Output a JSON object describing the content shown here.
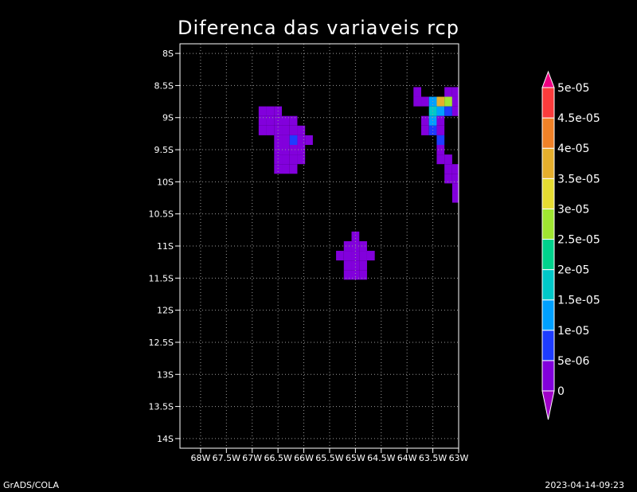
{
  "chart_data": {
    "type": "heatmap",
    "title": "Diferenca das variaveis rcp",
    "x_ticks": [
      "68W",
      "67.5W",
      "67W",
      "66.5W",
      "66W",
      "65.5W",
      "65W",
      "64.5W",
      "64W",
      "63.5W",
      "63W"
    ],
    "y_ticks": [
      "8S",
      "8.5S",
      "9S",
      "9.5S",
      "10S",
      "10.5S",
      "11S",
      "11.5S",
      "12S",
      "12.5S",
      "13S",
      "13.5S",
      "14S"
    ],
    "lon_range": [
      -68.4,
      -63.0
    ],
    "lat_range": [
      -14.15,
      -7.85
    ],
    "grid": true,
    "legend": "right",
    "colorbar": {
      "levels": [
        "0",
        "5e-06",
        "1e-05",
        "1.5e-05",
        "2e-05",
        "2.5e-05",
        "3e-05",
        "3.5e-05",
        "4e-05",
        "4.5e-05",
        "5e-05"
      ],
      "colors": [
        "#a000c8",
        "#8200dc",
        "#1e3cff",
        "#00a0ff",
        "#00c8c8",
        "#00d28c",
        "#a0e632",
        "#e6dc32",
        "#e6af2d",
        "#f08228",
        "#fa3c3c",
        "#f00082"
      ]
    },
    "cells": [
      {
        "lon": -66.8,
        "lat": -8.9,
        "v": 3e-06
      },
      {
        "lon": -66.65,
        "lat": -8.9,
        "v": 3e-06
      },
      {
        "lon": -66.5,
        "lat": -8.9,
        "v": 3e-06
      },
      {
        "lon": -66.8,
        "lat": -9.05,
        "v": 3e-06
      },
      {
        "lon": -66.65,
        "lat": -9.05,
        "v": 3e-06
      },
      {
        "lon": -66.5,
        "lat": -9.05,
        "v": 3e-06
      },
      {
        "lon": -66.35,
        "lat": -9.05,
        "v": 3e-06
      },
      {
        "lon": -66.2,
        "lat": -9.05,
        "v": 3e-06
      },
      {
        "lon": -66.8,
        "lat": -9.2,
        "v": 3e-06
      },
      {
        "lon": -66.65,
        "lat": -9.2,
        "v": 3e-06
      },
      {
        "lon": -66.5,
        "lat": -9.2,
        "v": 3e-06
      },
      {
        "lon": -66.35,
        "lat": -9.2,
        "v": 3e-06
      },
      {
        "lon": -66.2,
        "lat": -9.2,
        "v": 4e-06
      },
      {
        "lon": -66.05,
        "lat": -9.2,
        "v": 3e-06
      },
      {
        "lon": -66.5,
        "lat": -9.35,
        "v": 3e-06
      },
      {
        "lon": -66.35,
        "lat": -9.35,
        "v": 4e-06
      },
      {
        "lon": -66.2,
        "lat": -9.35,
        "v": 6e-06
      },
      {
        "lon": -66.05,
        "lat": -9.35,
        "v": 3e-06
      },
      {
        "lon": -65.9,
        "lat": -9.35,
        "v": 3e-06
      },
      {
        "lon": -66.5,
        "lat": -9.5,
        "v": 3e-06
      },
      {
        "lon": -66.35,
        "lat": -9.5,
        "v": 3e-06
      },
      {
        "lon": -66.2,
        "lat": -9.5,
        "v": 4e-06
      },
      {
        "lon": -66.05,
        "lat": -9.5,
        "v": 3e-06
      },
      {
        "lon": -66.5,
        "lat": -9.65,
        "v": 3e-06
      },
      {
        "lon": -66.35,
        "lat": -9.65,
        "v": 3e-06
      },
      {
        "lon": -66.2,
        "lat": -9.65,
        "v": 3e-06
      },
      {
        "lon": -66.05,
        "lat": -9.65,
        "v": 3e-06
      },
      {
        "lon": -66.5,
        "lat": -9.8,
        "v": 3e-06
      },
      {
        "lon": -66.35,
        "lat": -9.8,
        "v": 3e-06
      },
      {
        "lon": -66.2,
        "lat": -9.8,
        "v": 3e-06
      },
      {
        "lon": -65.0,
        "lat": -10.85,
        "v": 3e-06
      },
      {
        "lon": -65.15,
        "lat": -11.0,
        "v": 3e-06
      },
      {
        "lon": -65.0,
        "lat": -11.0,
        "v": 4e-06
      },
      {
        "lon": -64.85,
        "lat": -11.0,
        "v": 3e-06
      },
      {
        "lon": -65.3,
        "lat": -11.15,
        "v": 3e-06
      },
      {
        "lon": -65.15,
        "lat": -11.15,
        "v": 3e-06
      },
      {
        "lon": -65.0,
        "lat": -11.15,
        "v": 3e-06
      },
      {
        "lon": -64.85,
        "lat": -11.15,
        "v": 3e-06
      },
      {
        "lon": -64.7,
        "lat": -11.15,
        "v": 3e-06
      },
      {
        "lon": -65.15,
        "lat": -11.3,
        "v": 3e-06
      },
      {
        "lon": -65.0,
        "lat": -11.3,
        "v": 3e-06
      },
      {
        "lon": -64.85,
        "lat": -11.3,
        "v": 3e-06
      },
      {
        "lon": -65.15,
        "lat": -11.45,
        "v": 3e-06
      },
      {
        "lon": -65.0,
        "lat": -11.45,
        "v": 3e-06
      },
      {
        "lon": -64.85,
        "lat": -11.45,
        "v": 3e-06
      },
      {
        "lon": -63.8,
        "lat": -8.6,
        "v": 3e-06
      },
      {
        "lon": -63.2,
        "lat": -8.6,
        "v": 3e-06
      },
      {
        "lon": -63.05,
        "lat": -8.6,
        "v": 3e-06
      },
      {
        "lon": -63.8,
        "lat": -8.75,
        "v": 3e-06
      },
      {
        "lon": -63.65,
        "lat": -8.75,
        "v": 3e-06
      },
      {
        "lon": -63.5,
        "lat": -8.75,
        "v": 1.3e-05
      },
      {
        "lon": -63.35,
        "lat": -8.75,
        "v": 3.8e-05
      },
      {
        "lon": -63.2,
        "lat": -8.75,
        "v": 2.5e-05
      },
      {
        "lon": -63.05,
        "lat": -8.75,
        "v": 3e-06
      },
      {
        "lon": -63.5,
        "lat": -8.9,
        "v": 1.8e-05
      },
      {
        "lon": -63.35,
        "lat": -8.9,
        "v": 1.2e-05
      },
      {
        "lon": -63.2,
        "lat": -8.9,
        "v": 6e-06
      },
      {
        "lon": -63.05,
        "lat": -8.9,
        "v": 3e-06
      },
      {
        "lon": -63.65,
        "lat": -9.05,
        "v": 3e-06
      },
      {
        "lon": -63.5,
        "lat": -9.05,
        "v": 1.4e-05
      },
      {
        "lon": -63.35,
        "lat": -9.05,
        "v": 4e-06
      },
      {
        "lon": -63.65,
        "lat": -9.2,
        "v": 3e-06
      },
      {
        "lon": -63.5,
        "lat": -9.2,
        "v": 8e-06
      },
      {
        "lon": -63.35,
        "lat": -9.2,
        "v": 3e-06
      },
      {
        "lon": -63.35,
        "lat": -9.35,
        "v": 8e-06
      },
      {
        "lon": -63.35,
        "lat": -9.5,
        "v": 3e-06
      },
      {
        "lon": -63.35,
        "lat": -9.65,
        "v": 3e-06
      },
      {
        "lon": -63.2,
        "lat": -9.65,
        "v": 3e-06
      },
      {
        "lon": -63.2,
        "lat": -9.8,
        "v": 3e-06
      },
      {
        "lon": -63.05,
        "lat": -9.8,
        "v": 3e-06
      },
      {
        "lon": -63.2,
        "lat": -9.95,
        "v": 3e-06
      },
      {
        "lon": -63.05,
        "lat": -9.95,
        "v": 3e-06
      },
      {
        "lon": -63.05,
        "lat": -10.1,
        "v": 3e-06
      },
      {
        "lon": -63.05,
        "lat": -10.25,
        "v": 3e-06
      }
    ]
  },
  "footer": {
    "left": "GrADS/COLA",
    "right": "2023-04-14-09:23"
  }
}
